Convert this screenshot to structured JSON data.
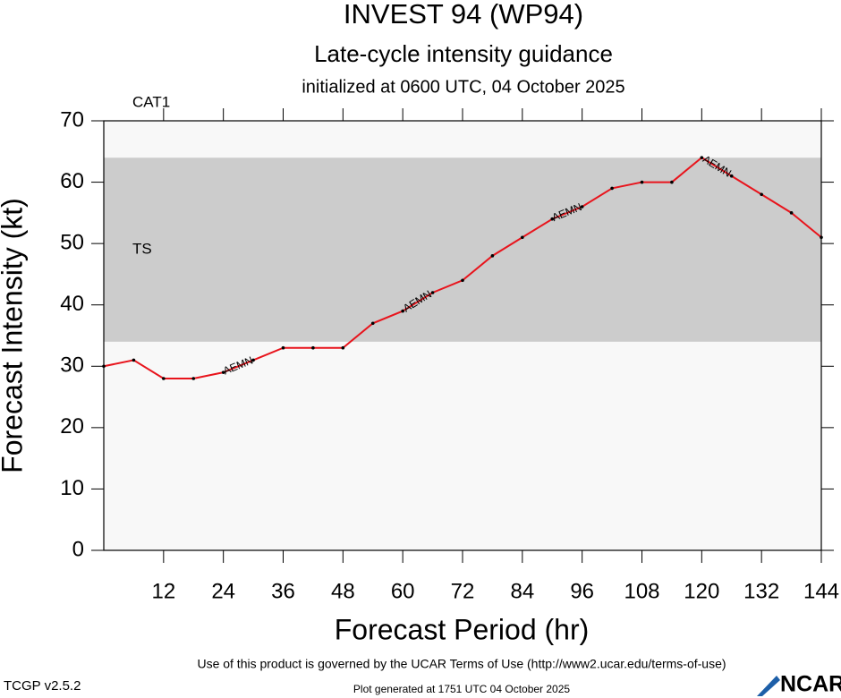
{
  "chart_data": {
    "type": "line",
    "title": "INVEST 94 (WP94)",
    "subtitle": "Late-cycle intensity guidance",
    "initialized": "initialized at 0600 UTC, 04 October 2025",
    "x_label": "Forecast Period (hr)",
    "y_label": "Forecast Intensity (kt)",
    "x": [
      0,
      6,
      12,
      18,
      24,
      30,
      36,
      42,
      48,
      54,
      60,
      66,
      72,
      78,
      84,
      90,
      96,
      102,
      108,
      114,
      120,
      126,
      132,
      138,
      144
    ],
    "series": [
      {
        "name": "AEMN",
        "color": "#e8141c",
        "values": [
          30,
          31,
          28,
          28,
          29,
          31,
          33,
          33,
          33,
          37,
          39,
          42,
          44,
          48,
          51,
          54,
          56,
          59,
          60,
          60,
          64,
          61,
          58,
          55,
          51
        ]
      }
    ],
    "bands": [
      {
        "name": "TS",
        "from": 34,
        "to": 64,
        "color": "#cccccc"
      },
      {
        "name": "CAT1",
        "from": 64,
        "to": 70,
        "color": "#f8f8f8"
      }
    ],
    "xlim": [
      0,
      144
    ],
    "xticks": [
      12,
      24,
      36,
      48,
      60,
      72,
      84,
      96,
      108,
      120,
      132,
      144
    ],
    "ylim": [
      0,
      70
    ],
    "yticks": [
      0,
      10,
      20,
      30,
      40,
      50,
      60,
      70
    ],
    "footer": "Use of this product is governed by the UCAR Terms of Use (http://www2.ucar.edu/terms-of-use)",
    "version": "TCGP v2.5.2",
    "generated": "Plot generated at 1751 UTC   04 October 2025",
    "logo": "NCAR"
  }
}
